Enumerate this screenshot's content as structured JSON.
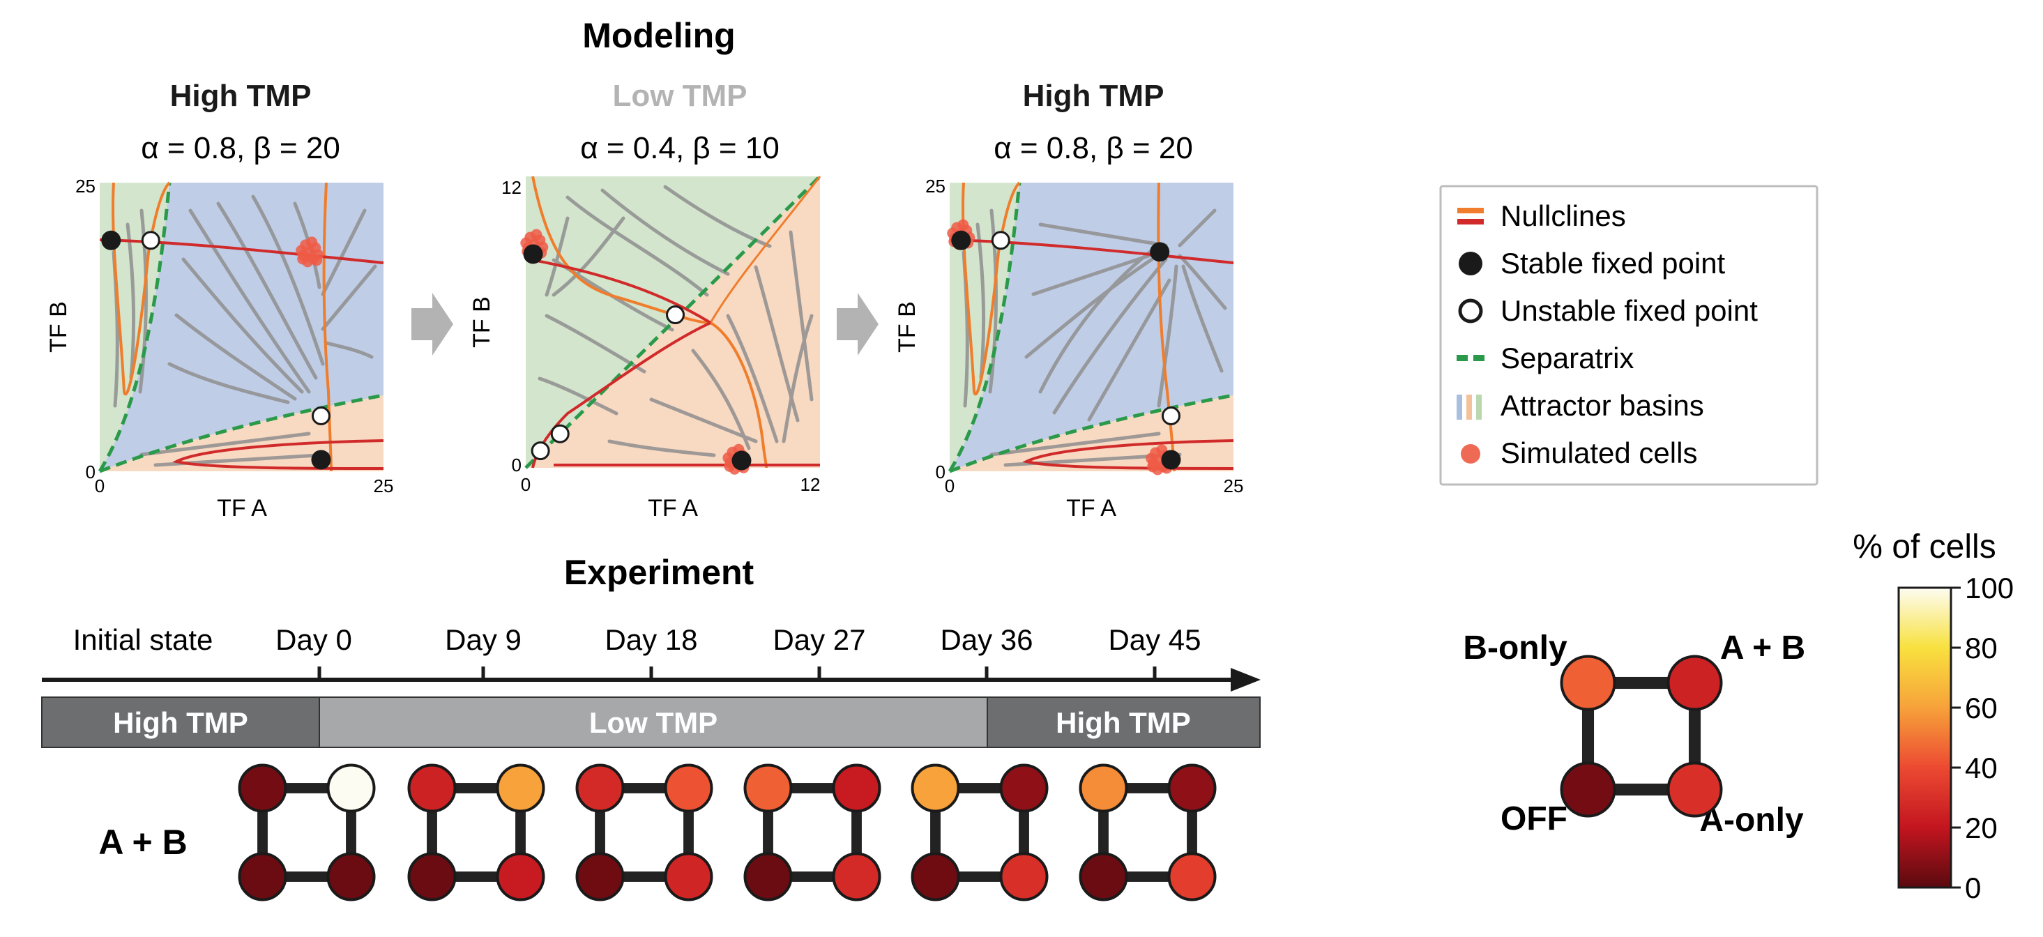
{
  "modeling": {
    "title": "Modeling",
    "panels": [
      {
        "condition": "High TMP",
        "condition_color": "#1a1a1a",
        "params": "α = 0.8, β = 20",
        "axis_max": 25,
        "x_min_label": "0",
        "x_max_label": "25",
        "y_min_label": "0",
        "y_max_label": "25",
        "xlabel": "TF A",
        "ylabel": "TF B",
        "stable_points": [
          [
            1,
            20
          ],
          [
            19.5,
            1
          ]
        ],
        "unstable_points": [
          [
            4.5,
            20
          ],
          [
            19.5,
            4.8
          ]
        ],
        "cell_cluster": [
          18.5,
          19
        ]
      },
      {
        "condition": "Low TMP",
        "condition_color": "#b3b3b3",
        "params": "α = 0.4, β = 10",
        "axis_max": 12,
        "x_min_label": "0",
        "x_max_label": "12",
        "y_min_label": "0",
        "y_max_label": "12",
        "xlabel": "TF A",
        "ylabel": "TF B",
        "stable_points": [
          [
            0.3,
            8.8
          ],
          [
            8.8,
            0.3
          ]
        ],
        "unstable_points": [
          [
            6.1,
            6.3
          ],
          [
            1.4,
            1.4
          ],
          [
            0.6,
            0.7
          ]
        ],
        "cell_cluster_a": [
          0.35,
          9.2
        ],
        "cell_cluster_b": [
          8.6,
          0.35
        ]
      },
      {
        "condition": "High TMP",
        "condition_color": "#1a1a1a",
        "params": "α = 0.8, β = 20",
        "axis_max": 25,
        "x_min_label": "0",
        "x_max_label": "25",
        "y_min_label": "0",
        "y_max_label": "25",
        "xlabel": "TF A",
        "ylabel": "TF B",
        "stable_points": [
          [
            1,
            20
          ],
          [
            18.5,
            19
          ],
          [
            19.5,
            1
          ]
        ],
        "unstable_points": [
          [
            4.5,
            20
          ],
          [
            19.5,
            4.8
          ]
        ],
        "cell_cluster_a": [
          1,
          20.5
        ],
        "cell_cluster_b": [
          18.5,
          1
        ]
      }
    ]
  },
  "legend": {
    "items": [
      {
        "label": "Nullclines",
        "symbol": "nullclines"
      },
      {
        "label": "Stable fixed point",
        "symbol": "stable"
      },
      {
        "label": "Unstable fixed point",
        "symbol": "unstable"
      },
      {
        "label": "Separatrix",
        "symbol": "separatrix"
      },
      {
        "label": "Attractor basins",
        "symbol": "basins"
      },
      {
        "label": "Simulated cells",
        "symbol": "cells"
      }
    ]
  },
  "colors": {
    "nullcline_orange": "#ef7d2c",
    "nullcline_red": "#d02a2a",
    "separatrix": "#2a9a4a",
    "basin_blue": "#bfcde6",
    "basin_green": "#d3e5cc",
    "basin_orange": "#f8d9c2",
    "cells": "#ef6a55",
    "stream": "#8f8f8f",
    "arrow_grey": "#b3b3b3"
  },
  "experiment": {
    "title": "Experiment",
    "timeline_labels": [
      "Initial state",
      "Day 0",
      "Day 9",
      "Day 18",
      "Day 27",
      "Day 36",
      "Day 45"
    ],
    "phases": [
      {
        "label": "High TMP",
        "color": "#6d6e70"
      },
      {
        "label": "Low TMP",
        "color": "#a7a8aa"
      },
      {
        "label": "High TMP",
        "color": "#6d6e70"
      }
    ],
    "row_label": "A + B",
    "snapshots": [
      {
        "b_only": 5,
        "a_and_b": 100,
        "off": 3,
        "a_only": 3
      },
      {
        "b_only": 25,
        "a_and_b": 60,
        "off": 3,
        "a_only": 22
      },
      {
        "b_only": 28,
        "a_and_b": 42,
        "off": 4,
        "a_only": 26
      },
      {
        "b_only": 45,
        "a_and_b": 22,
        "off": 3,
        "a_only": 28
      },
      {
        "b_only": 60,
        "a_and_b": 10,
        "off": 4,
        "a_only": 30
      },
      {
        "b_only": 55,
        "a_and_b": 10,
        "off": 3,
        "a_only": 35
      }
    ]
  },
  "key": {
    "b_only": "B-only",
    "a_and_b": "A + B",
    "off": "OFF",
    "a_only": "A-only",
    "values": {
      "b_only": 45,
      "a_and_b": 25,
      "off": 5,
      "a_only": 30
    }
  },
  "colorbar": {
    "title": "% of cells",
    "ticks": [
      "0",
      "20",
      "40",
      "60",
      "80",
      "100"
    ]
  }
}
